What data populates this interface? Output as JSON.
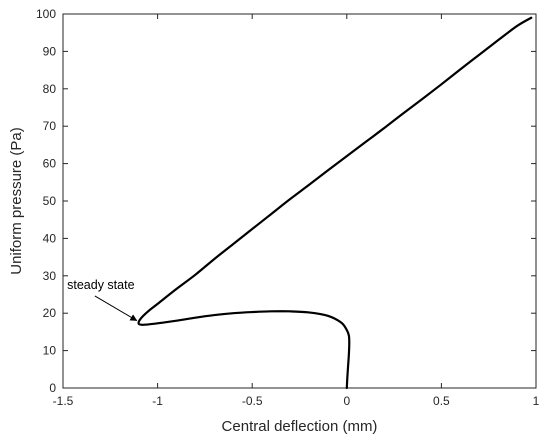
{
  "colors": {
    "line": "#000000",
    "axis": "#262626",
    "background": "#ffffff"
  },
  "chart_data": {
    "type": "line",
    "title": "",
    "xlabel": "Central deflection (mm)",
    "ylabel": "Uniform pressure (Pa)",
    "xlim": [
      -1.5,
      1.0
    ],
    "ylim": [
      0,
      100
    ],
    "x_ticks": [
      -1.5,
      -1,
      -0.5,
      0,
      0.5,
      1
    ],
    "x_tick_labels": [
      "-1.5",
      "-1",
      "-0.5",
      "0",
      "0.5",
      "1"
    ],
    "y_ticks": [
      0,
      10,
      20,
      30,
      40,
      50,
      60,
      70,
      80,
      90,
      100
    ],
    "y_tick_labels": [
      "0",
      "10",
      "20",
      "30",
      "40",
      "50",
      "60",
      "70",
      "80",
      "90",
      "100"
    ],
    "grid": false,
    "box": true,
    "series": [
      {
        "x": [
          0.0,
          0.003,
          0.007,
          0.011,
          0.013,
          0.011,
          0.0,
          -0.03,
          -0.1,
          -0.2,
          -0.3,
          -0.4,
          -0.5,
          -0.6,
          -0.7,
          -0.8,
          -0.9,
          -1.0,
          -1.05,
          -1.08,
          -1.1,
          -1.09,
          -1.05,
          -1.0,
          -0.9,
          -0.8,
          -0.7,
          -0.6,
          -0.5,
          -0.4,
          -0.3,
          -0.2,
          -0.1,
          0.0,
          0.1,
          0.2,
          0.3,
          0.4,
          0.5,
          0.6,
          0.7,
          0.8,
          0.9,
          0.975
        ],
        "y": [
          0,
          3,
          6,
          9,
          12,
          14,
          15.5,
          17.5,
          19.3,
          20.2,
          20.5,
          20.5,
          20.3,
          20.0,
          19.5,
          18.8,
          18.0,
          17.3,
          17.0,
          16.9,
          17.2,
          18.5,
          20.5,
          22.5,
          26.5,
          30.3,
          34.5,
          38.5,
          42.5,
          46.5,
          50.5,
          54.3,
          58.2,
          62.0,
          65.8,
          69.6,
          73.5,
          77.3,
          81.2,
          85.2,
          89.1,
          93.0,
          96.8,
          99.0
        ]
      }
    ],
    "annotations": [
      {
        "text": "steady state",
        "x": -1.3,
        "y": 26.5,
        "arrow_to": [
          -1.1,
          17.5
        ]
      }
    ]
  }
}
